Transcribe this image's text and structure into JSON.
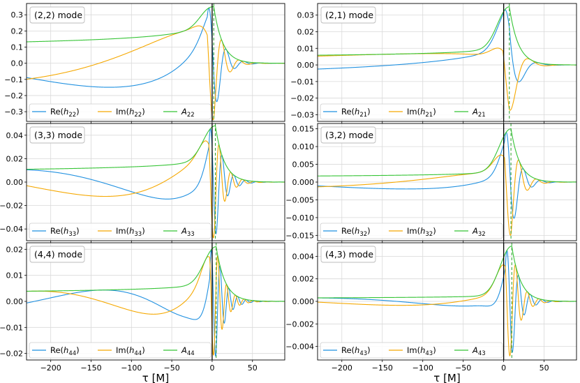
{
  "chart_data": {
    "type": "line",
    "xlabel": "τ [M]",
    "xlim": [
      -230,
      90
    ],
    "xticks": [
      -200,
      -150,
      -100,
      -50,
      0,
      50
    ],
    "colors": {
      "re": "#1f90e0",
      "im": "#f5a800",
      "amp": "#35c435",
      "zeroline": "#000000",
      "peakline": "#2aa02a"
    },
    "panels": [
      {
        "title": "(2,2) mode",
        "ylim": [
          -0.36,
          0.37
        ],
        "yticks": [
          -0.3,
          -0.2,
          -0.1,
          0.0,
          0.1,
          0.2,
          0.3
        ],
        "ytick_labels": [
          "−0.3",
          "−0.2",
          "−0.1",
          "0.0",
          "0.1",
          "0.2",
          "0.3"
        ],
        "peak_time": 2,
        "peak_amplitude": 0.35,
        "early_amplitude": 0.17,
        "omega_start": 0.09,
        "legend": [
          {
            "key": "re",
            "base": "Re(",
            "var": "h",
            "sub": "22",
            "close": ")"
          },
          {
            "key": "im",
            "base": "Im(",
            "var": "h",
            "sub": "22",
            "close": ")"
          },
          {
            "key": "amp",
            "base": "",
            "var": "A",
            "sub": "22",
            "close": ""
          }
        ]
      },
      {
        "title": "(2,1) mode",
        "ylim": [
          -0.034,
          0.037
        ],
        "yticks": [
          -0.03,
          -0.02,
          -0.01,
          0.0,
          0.01,
          0.02,
          0.03
        ],
        "ytick_labels": [
          "−0.03",
          "−0.02",
          "−0.01",
          "0.00",
          "0.01",
          "0.02",
          "0.03"
        ],
        "peak_time": 7,
        "peak_amplitude": 0.035,
        "early_amplitude": 0.0075,
        "omega_start": 0.045,
        "legend": [
          {
            "key": "re",
            "base": "Re(",
            "var": "h",
            "sub": "21",
            "close": ")"
          },
          {
            "key": "im",
            "base": "Im(",
            "var": "h",
            "sub": "21",
            "close": ")"
          },
          {
            "key": "amp",
            "base": "",
            "var": "A",
            "sub": "21",
            "close": ""
          }
        ]
      },
      {
        "title": "(3,3) mode",
        "ylim": [
          -0.05,
          0.05
        ],
        "yticks": [
          -0.04,
          -0.02,
          0.0,
          0.02,
          0.04
        ],
        "ytick_labels": [
          "−0.04",
          "−0.02",
          "0.00",
          "0.02",
          "0.04"
        ],
        "peak_time": 4,
        "peak_amplitude": 0.048,
        "early_amplitude": 0.014,
        "omega_start": 0.135,
        "legend": [
          {
            "key": "re",
            "base": "Re(",
            "var": "h",
            "sub": "33",
            "close": ")"
          },
          {
            "key": "im",
            "base": "Im(",
            "var": "h",
            "sub": "33",
            "close": ")"
          },
          {
            "key": "amp",
            "base": "",
            "var": "A",
            "sub": "33",
            "close": ""
          }
        ]
      },
      {
        "title": "(3,2) mode",
        "ylim": [
          -0.0165,
          0.0165
        ],
        "yticks": [
          -0.015,
          -0.01,
          -0.005,
          0.0,
          0.005,
          0.01,
          0.015
        ],
        "ytick_labels": [
          "−0.015",
          "−0.010",
          "−0.005",
          "0.000",
          "0.005",
          "0.010",
          "0.015"
        ],
        "peak_time": 9,
        "peak_amplitude": 0.015,
        "early_amplitude": 0.0022,
        "omega_start": 0.09,
        "legend": [
          {
            "key": "re",
            "base": "Re(",
            "var": "h",
            "sub": "32",
            "close": ")"
          },
          {
            "key": "im",
            "base": "Im(",
            "var": "h",
            "sub": "32",
            "close": ")"
          },
          {
            "key": "amp",
            "base": "",
            "var": "A",
            "sub": "32",
            "close": ""
          }
        ]
      },
      {
        "title": "(4,4) mode",
        "ylim": [
          -0.0225,
          0.0225
        ],
        "yticks": [
          -0.02,
          -0.01,
          0.0,
          0.01,
          0.02
        ],
        "ytick_labels": [
          "−0.02",
          "−0.01",
          "0.00",
          "0.01",
          "0.02"
        ],
        "peak_time": 5,
        "peak_amplitude": 0.021,
        "early_amplitude": 0.005,
        "omega_start": 0.18,
        "legend": [
          {
            "key": "re",
            "base": "Re(",
            "var": "h",
            "sub": "44",
            "close": ")"
          },
          {
            "key": "im",
            "base": "Im(",
            "var": "h",
            "sub": "44",
            "close": ")"
          },
          {
            "key": "amp",
            "base": "",
            "var": "A",
            "sub": "44",
            "close": ""
          }
        ]
      },
      {
        "title": "(4,3) mode",
        "ylim": [
          -0.0052,
          0.0052
        ],
        "yticks": [
          -0.004,
          -0.002,
          0.0,
          0.002,
          0.004
        ],
        "ytick_labels": [
          "−0.004",
          "−0.002",
          "0.000",
          "0.002",
          "0.004"
        ],
        "peak_time": 10,
        "peak_amplitude": 0.0049,
        "early_amplitude": 0.0004,
        "omega_start": 0.135,
        "legend": [
          {
            "key": "re",
            "base": "Re(",
            "var": "h",
            "sub": "43",
            "close": ")"
          },
          {
            "key": "im",
            "base": "Im(",
            "var": "h",
            "sub": "43",
            "close": ")"
          },
          {
            "key": "amp",
            "base": "",
            "var": "A",
            "sub": "43",
            "close": ""
          }
        ]
      }
    ]
  }
}
